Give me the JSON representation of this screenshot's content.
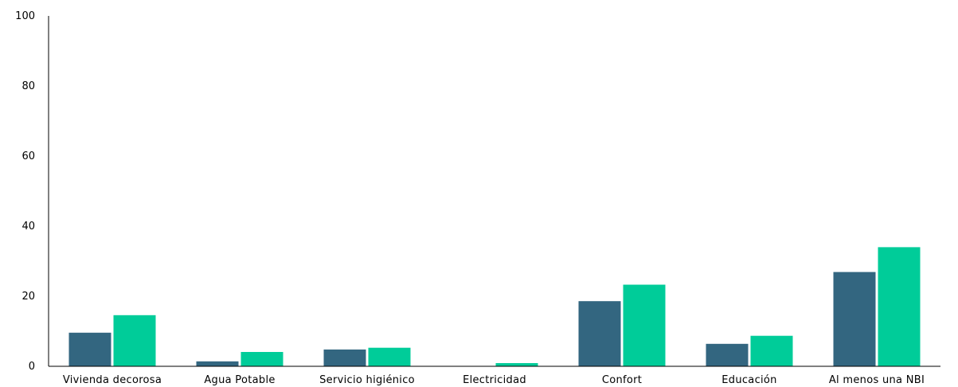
{
  "chart_data": {
    "type": "bar",
    "categories": [
      "Vivienda decorosa",
      "Agua Potable",
      "Servicio higiénico",
      "Electricidad",
      "Confort",
      "Educación",
      "Al menos una NBI"
    ],
    "series": [
      {
        "color": "#336680",
        "values": [
          9.6,
          1.4,
          4.8,
          0,
          18.6,
          6.4,
          26.9
        ]
      },
      {
        "color": "#00cc99",
        "values": [
          14.6,
          4.1,
          5.3,
          0.9,
          23.3,
          8.7,
          34.0
        ]
      }
    ],
    "yticks": [
      0,
      20,
      40,
      60,
      80,
      100
    ],
    "ylim": [
      0,
      100
    ],
    "grid": false,
    "legend": "none"
  }
}
